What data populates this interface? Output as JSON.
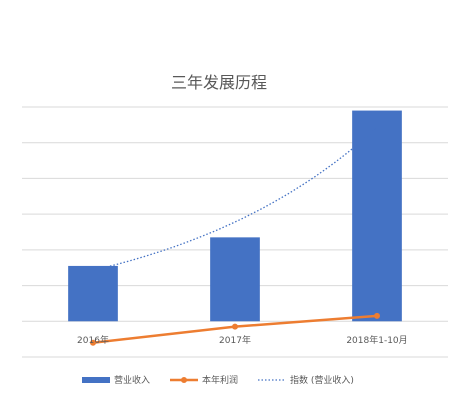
{
  "chart_data": {
    "type": "bar",
    "title": "三年发展历程",
    "categories": [
      "2016年",
      "2017年",
      "2018年1-10月"
    ],
    "xlabel": "",
    "ylabel": "",
    "ylim": [
      -1.0,
      6.0
    ],
    "y_tick_labels_shown": false,
    "grid": true,
    "legend_position": "bottom",
    "series": [
      {
        "name": "营业收入",
        "type": "bar",
        "color": "#4472C4",
        "values": [
          1.55,
          2.35,
          5.9
        ]
      },
      {
        "name": "本年利润",
        "type": "line",
        "color": "#ED7D31",
        "marker": "circle",
        "values": [
          -0.6,
          -0.15,
          0.15
        ]
      },
      {
        "name": "指数 (营业收入)",
        "type": "trendline",
        "trend": "exponential",
        "color": "#4472C4",
        "line_style": "dotted",
        "fitted_to": "营业收入"
      }
    ]
  }
}
